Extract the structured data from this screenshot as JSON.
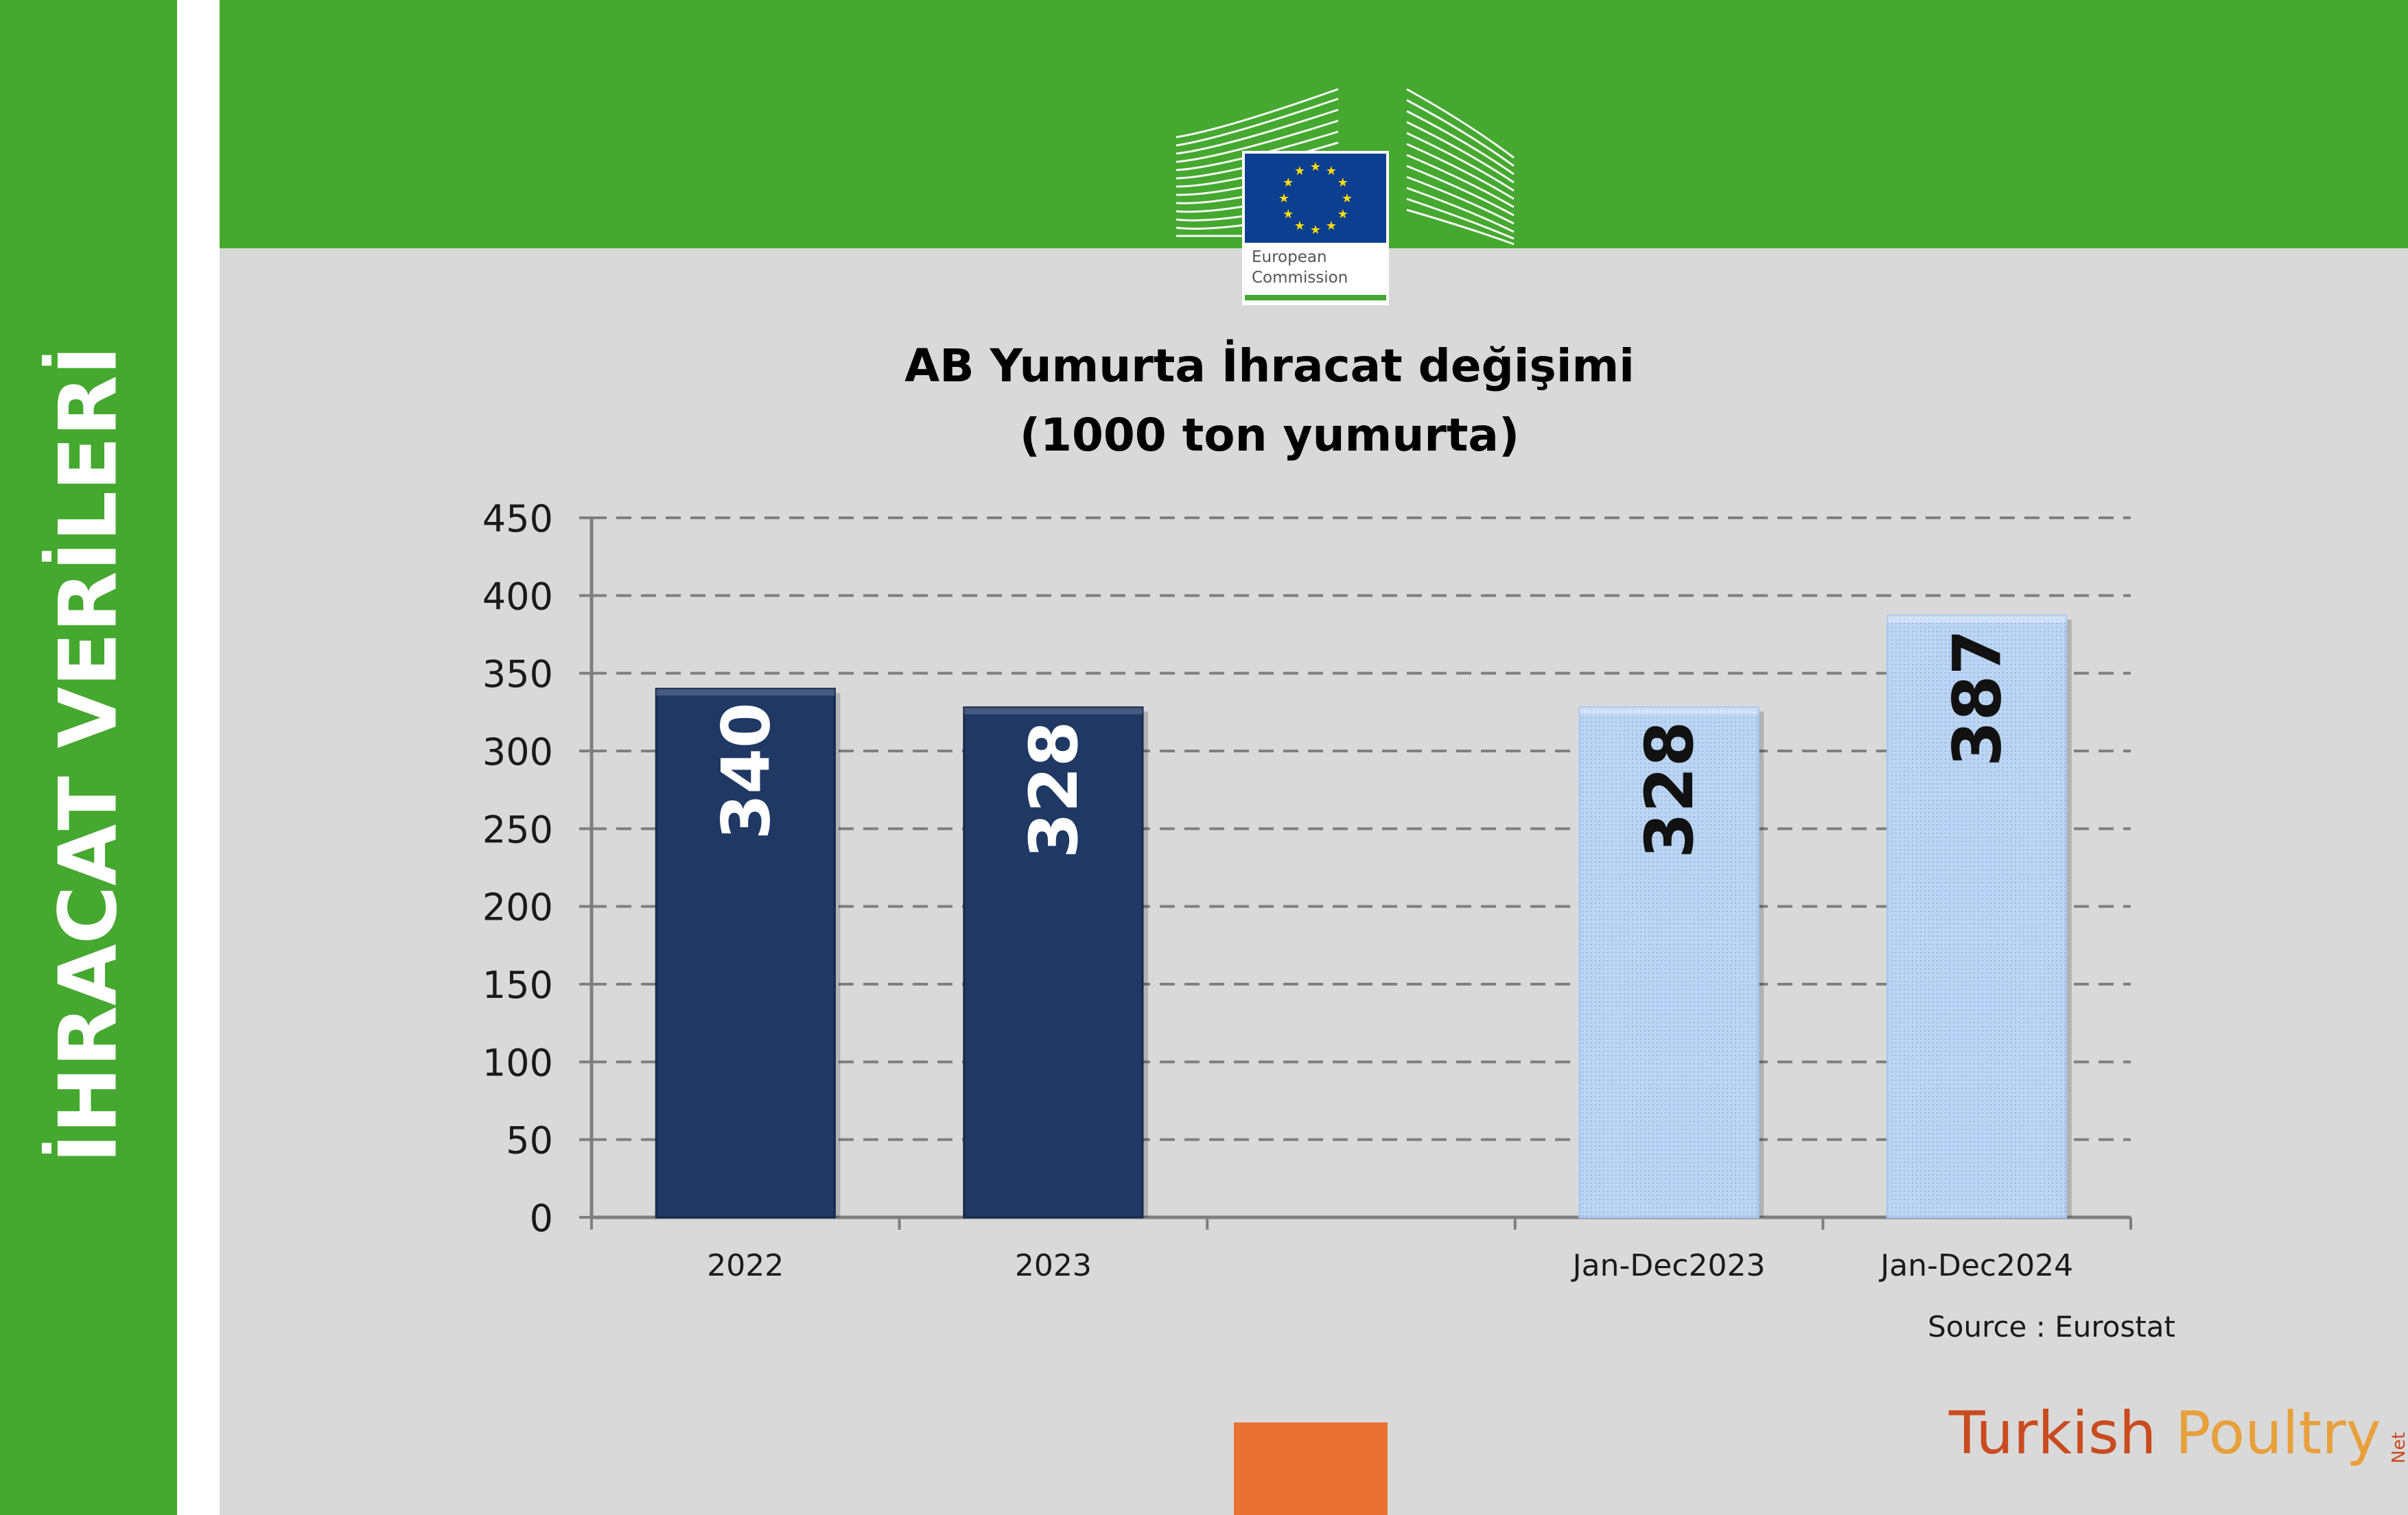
{
  "side_title": "İHRACAT VERİLERİ",
  "logo": {
    "line1": "European",
    "line2": "Commission",
    "flag_color": "#0d3f91",
    "star_color": "#ffdd00"
  },
  "chart_data": {
    "type": "bar",
    "title_line1": "AB Yumurta İhracat değişimi",
    "title_line2": "(1000 ton yumurta)",
    "categories": [
      "2022",
      "2023",
      "",
      "Jan-Dec2023",
      "Jan-Dec2024"
    ],
    "values": [
      340,
      328,
      null,
      328,
      387
    ],
    "value_labels": [
      "340",
      "328",
      "",
      "328",
      "387"
    ],
    "bar_colors": [
      "#1f3864",
      "#1f3864",
      "",
      "#bcd5f3",
      "#bcd5f3"
    ],
    "label_colors": [
      "#ffffff",
      "#ffffff",
      "",
      "#111111",
      "#111111"
    ],
    "yticks": [
      "0",
      "50",
      "100",
      "150",
      "200",
      "250",
      "300",
      "350",
      "400",
      "450"
    ],
    "ylim": [
      0,
      450
    ],
    "grid": true,
    "xlabel": "",
    "ylabel": ""
  },
  "source": "Source : Eurostat",
  "brand": {
    "part1": "Turkish ",
    "part2": "Poultry",
    "part3": "Net"
  },
  "colors": {
    "green": "#45a82f",
    "panel": "#d9d9d9",
    "orange": "#e97132"
  }
}
